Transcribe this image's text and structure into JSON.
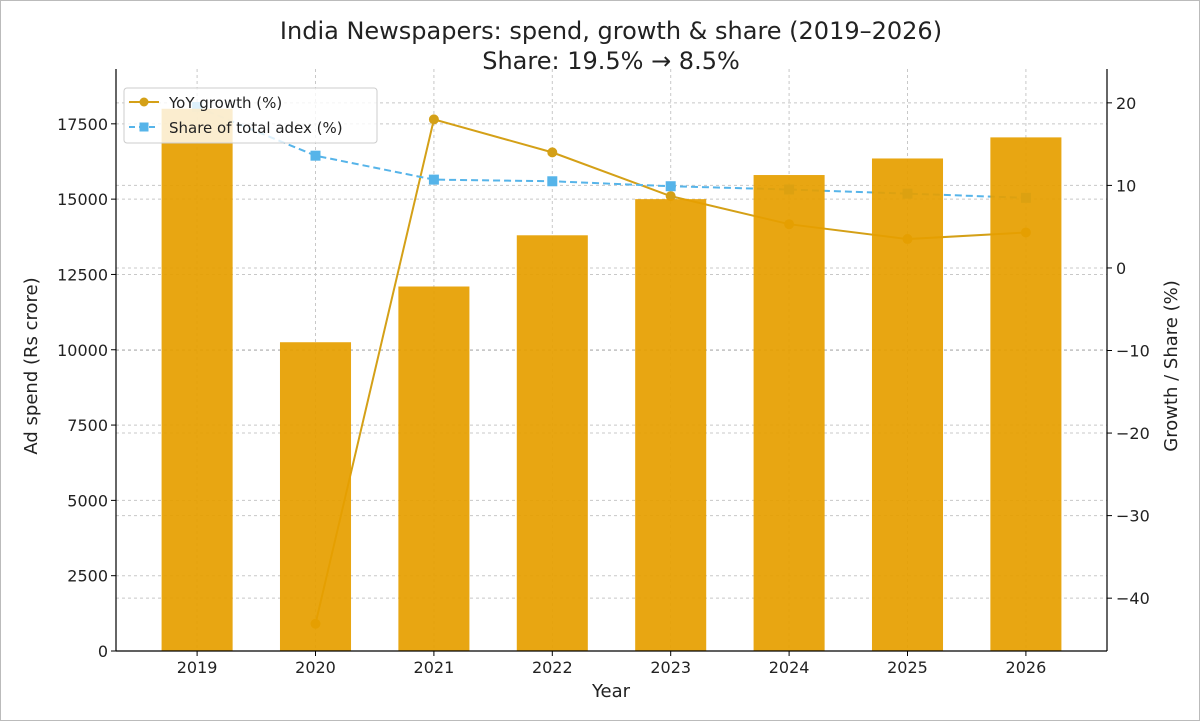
{
  "chart_data": {
    "type": "bar+line",
    "title": "India Newspapers: spend, growth & share (2019–2026)",
    "subtitle": "Share: 19.5% → 8.5%",
    "xlabel": "Year",
    "ylabel": "Ad spend (Rs crore)",
    "ylabel_right": "Growth / Share (%)",
    "categories": [
      "2019",
      "2020",
      "2021",
      "2022",
      "2023",
      "2024",
      "2025",
      "2026"
    ],
    "bars": {
      "values": [
        18000,
        10250,
        12100,
        13800,
        15000,
        15800,
        16350,
        17050
      ],
      "color": "#E69F00"
    },
    "ylim": [
      0,
      19320
    ],
    "yticks": [
      0,
      2500,
      5000,
      7500,
      10000,
      12500,
      15000,
      17500
    ],
    "ylim_right": [
      -46.4,
      24.1
    ],
    "yticks_right": [
      -40,
      -30,
      -20,
      -10,
      0,
      10,
      20
    ],
    "series": [
      {
        "name": "YoY growth (%)",
        "values": [
          null,
          -43.1,
          18.0,
          14.0,
          8.7,
          5.3,
          3.5,
          4.3
        ],
        "color": "#D4A017",
        "style": "solid",
        "marker": "circle"
      },
      {
        "name": "Share of total adex (%)",
        "values": [
          19.5,
          13.6,
          10.7,
          10.5,
          9.9,
          9.5,
          9.0,
          8.5
        ],
        "color": "#56B4E9",
        "style": "dashed",
        "marker": "square"
      }
    ],
    "grid": true,
    "legend": "top-left"
  }
}
